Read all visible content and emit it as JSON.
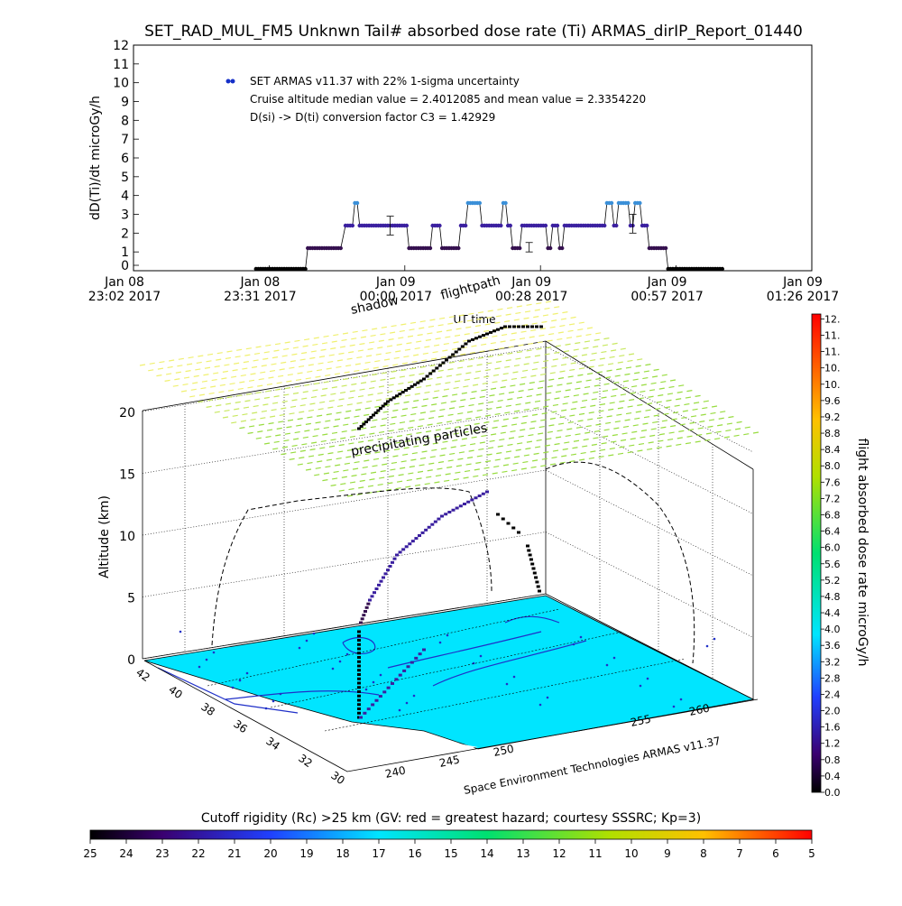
{
  "title": "SET_RAD_MUL_FM5 Unknwn Tail#  absorbed dose rate (Ti) ARMAS_dirIP_Report_01440",
  "chart_data": [
    {
      "type": "scatter",
      "title": "SET_RAD_MUL_FM5 Unknwn Tail#  absorbed dose rate (Ti) ARMAS_dirIP_Report_01440",
      "xlabel": "UT time",
      "ylabel": "dD(Ti)/dt microGy/h",
      "ylim": [
        0,
        12
      ],
      "x_ticks": [
        {
          "line1": "Jan 08",
          "line2": "23:02 2017"
        },
        {
          "line1": "Jan 08",
          "line2": "23:31 2017"
        },
        {
          "line1": "Jan 09",
          "line2": "00:00 2017"
        },
        {
          "line1": "Jan 09",
          "line2": "00:28 2017"
        },
        {
          "line1": "Jan 09",
          "line2": "00:57 2017"
        },
        {
          "line1": "Jan 09",
          "line2": "01:26 2017"
        }
      ],
      "y_ticks": [
        "0",
        "1",
        "2",
        "3",
        "4",
        "5",
        "6",
        "7",
        "8",
        "9",
        "10",
        "11",
        "12"
      ],
      "legend": {
        "series_label": "SET ARMAS v11.37 with 22% 1-sigma uncertainty",
        "line2": "Cruise altitude median value = 2.4012085 and mean value = 2.3354220",
        "line3": "D(si) -> D(ti) conversion factor C3 = 1.42929",
        "placement": "top-left"
      },
      "x_minutes_after_2302": [],
      "series": [
        {
          "name": "SET ARMAS v11.37 with 22% 1-sigma uncertainty",
          "segments": [
            {
              "t0": 26.0,
              "t1": 36.6,
              "value": 0.0
            },
            {
              "t0": 37.0,
              "t1": 44.4,
              "value": 1.2
            },
            {
              "t0": 45.0,
              "t1": 46.5,
              "value": 2.4
            },
            {
              "t0": 47.0,
              "t1": 47.5,
              "value": 3.6
            },
            {
              "t0": 48.0,
              "t1": 58.0,
              "value": 2.4
            },
            {
              "t0": 58.5,
              "t1": 63.0,
              "value": 1.2
            },
            {
              "t0": 63.5,
              "t1": 65.0,
              "value": 2.4
            },
            {
              "t0": 65.5,
              "t1": 69.0,
              "value": 1.2
            },
            {
              "t0": 69.5,
              "t1": 70.5,
              "value": 2.4
            },
            {
              "t0": 71.0,
              "t1": 73.5,
              "value": 3.6
            },
            {
              "t0": 74.0,
              "t1": 78.0,
              "value": 2.4
            },
            {
              "t0": 78.5,
              "t1": 79.0,
              "value": 3.6
            },
            {
              "t0": 79.5,
              "t1": 80.0,
              "value": 2.4
            },
            {
              "t0": 80.5,
              "t1": 82.0,
              "value": 1.2
            },
            {
              "t0": 82.5,
              "t1": 87.5,
              "value": 2.4
            },
            {
              "t0": 88.0,
              "t1": 88.5,
              "value": 1.2
            },
            {
              "t0": 89.0,
              "t1": 90.0,
              "value": 2.4
            },
            {
              "t0": 90.5,
              "t1": 91.0,
              "value": 1.2
            },
            {
              "t0": 91.5,
              "t1": 100.0,
              "value": 2.4
            },
            {
              "t0": 100.5,
              "t1": 101.5,
              "value": 3.6
            },
            {
              "t0": 102.0,
              "t1": 102.5,
              "value": 2.4
            },
            {
              "t0": 103.0,
              "t1": 105.0,
              "value": 3.6
            },
            {
              "t0": 105.5,
              "t1": 106.0,
              "value": 2.4
            },
            {
              "t0": 106.5,
              "t1": 107.5,
              "value": 3.6
            },
            {
              "t0": 108.0,
              "t1": 109.0,
              "value": 2.4
            },
            {
              "t0": 109.5,
              "t1": 113.0,
              "value": 1.2
            },
            {
              "t0": 113.5,
              "t1": 125.0,
              "value": 0.0
            }
          ],
          "error_bars": [
            {
              "t": 54.5,
              "low": 1.9,
              "high": 2.9
            },
            {
              "t": 84.0,
              "low": 1.0,
              "high": 1.5
            },
            {
              "t": 106.0,
              "low": 2.0,
              "high": 3.0
            }
          ]
        }
      ]
    },
    {
      "type": "scatter",
      "title": "",
      "zlabel": "Altitude (km)",
      "z_ticks": [
        "0",
        "5",
        "10",
        "15",
        "20"
      ],
      "lat_ticks": [
        "42",
        "40",
        "38",
        "36",
        "34",
        "32",
        "30"
      ],
      "lon_ticks_front": [
        "240",
        "245",
        "250"
      ],
      "lon_ticks_right": [
        "255",
        "260"
      ],
      "annotations": {
        "shadow": "shadow",
        "flightpath": "flightpath",
        "precip": "precipitating particles",
        "credit": "Space Environment Technologies ARMAS v11.37"
      }
    }
  ],
  "colorbar_right": {
    "label": "flight absorbed dose rate microGy/h",
    "ticks": [
      "0.0",
      "0.4",
      "0.8",
      "1.2",
      "1.6",
      "2.0",
      "2.4",
      "2.8",
      "3.2",
      "3.6",
      "4.0",
      "4.4",
      "4.8",
      "5.2",
      "5.6",
      "6.0",
      "6.4",
      "6.8",
      "7.2",
      "7.6",
      "8.0",
      "8.4",
      "8.8",
      "9.2",
      "9.6",
      "10.",
      "10.",
      "11.",
      "11.",
      "12."
    ]
  },
  "colorbar_bottom": {
    "label": "Cutoff rigidity (Rc) >25 km (GV: red = greatest hazard; courtesy SSSRC; Kp=3)",
    "ticks": [
      "25",
      "24",
      "23",
      "22",
      "21",
      "20",
      "19",
      "18",
      "17",
      "16",
      "15",
      "14",
      "13",
      "12",
      "11",
      "10",
      "9",
      "8",
      "7",
      "6",
      "5"
    ]
  },
  "colors": {
    "surface": "#00e5ff",
    "low_dose": "#300060",
    "mid_dose": "#3a8fd8",
    "yellow": "#f0f060",
    "green": "#a0e040"
  }
}
